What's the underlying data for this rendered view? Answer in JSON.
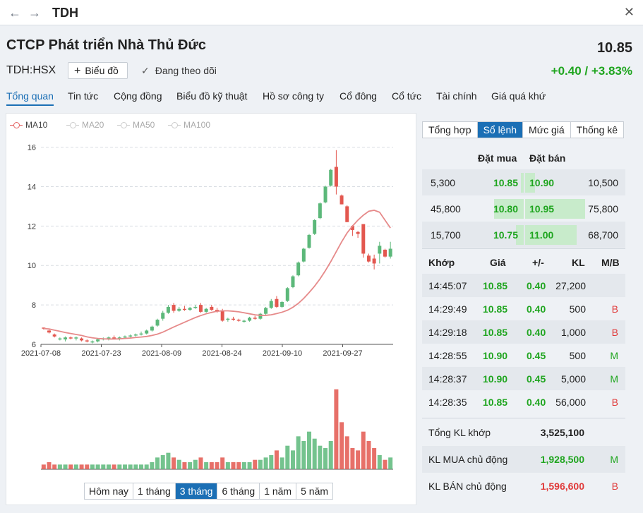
{
  "window": {
    "back_icon": "arrow-left-icon",
    "forward_icon": "arrow-right-icon",
    "title": "TDH",
    "close_icon": "close-icon"
  },
  "stock": {
    "name": "CTCP Phát triển Nhà Thủ Đức",
    "ticker": "TDH:HSX",
    "price": "10.85",
    "change": "+0.40 / +3.83%",
    "chart_button": "Biểu đồ",
    "follow_label": "Đang theo dõi"
  },
  "tabs": [
    "Tổng quan",
    "Tin tức",
    "Cộng đồng",
    "Biểu đồ kỹ thuật",
    "Hồ sơ công ty",
    "Cổ đông",
    "Cổ tức",
    "Tài chính",
    "Giá quá khứ"
  ],
  "active_tab": "Tổng quan",
  "legend": [
    {
      "label": "MA10",
      "on": true
    },
    {
      "label": "MA20",
      "on": false
    },
    {
      "label": "MA50",
      "on": false
    },
    {
      "label": "MA100",
      "on": false
    }
  ],
  "ranges": [
    "Hôm nay",
    "1 tháng",
    "3 tháng",
    "6 tháng",
    "1 năm",
    "5 năm"
  ],
  "active_range": "3 tháng",
  "colors": {
    "up": "#5cb87a",
    "down": "#e3574f",
    "ma10": "#e68a8a",
    "accent": "#1b6fb5",
    "green": "#1fa51f",
    "red": "#e03a3a"
  },
  "chart_data": {
    "type": "candlestick",
    "x_ticks": [
      "2021-07-08",
      "2021-07-23",
      "2021-08-09",
      "2021-08-24",
      "2021-09-10",
      "2021-09-27"
    ],
    "y_ticks": [
      6,
      8,
      10,
      12,
      14,
      16
    ],
    "ylim": [
      6,
      16.7
    ],
    "grid": true,
    "candles": [
      [
        6.85,
        6.85,
        6.75,
        6.8
      ],
      [
        6.7,
        6.75,
        6.55,
        6.6
      ],
      [
        6.5,
        6.55,
        6.35,
        6.4
      ],
      [
        6.25,
        6.35,
        6.2,
        6.3
      ],
      [
        6.25,
        6.4,
        6.15,
        6.35
      ],
      [
        6.35,
        6.4,
        6.25,
        6.3
      ],
      [
        6.3,
        6.4,
        6.2,
        6.35
      ],
      [
        6.3,
        6.35,
        6.15,
        6.2
      ],
      [
        6.2,
        6.25,
        6.1,
        6.15
      ],
      [
        6.15,
        6.2,
        6.05,
        6.15
      ],
      [
        6.15,
        6.3,
        6.1,
        6.25
      ],
      [
        6.25,
        6.35,
        6.2,
        6.3
      ],
      [
        6.3,
        6.4,
        6.2,
        6.35
      ],
      [
        6.35,
        6.45,
        6.25,
        6.3
      ],
      [
        6.3,
        6.4,
        6.2,
        6.35
      ],
      [
        6.35,
        6.45,
        6.3,
        6.4
      ],
      [
        6.4,
        6.5,
        6.35,
        6.45
      ],
      [
        6.45,
        6.55,
        6.4,
        6.5
      ],
      [
        6.5,
        6.65,
        6.45,
        6.55
      ],
      [
        6.55,
        6.75,
        6.5,
        6.7
      ],
      [
        6.7,
        6.95,
        6.65,
        6.9
      ],
      [
        6.95,
        7.3,
        6.9,
        7.25
      ],
      [
        7.3,
        7.7,
        7.2,
        7.6
      ],
      [
        7.6,
        8.0,
        7.55,
        7.9
      ],
      [
        8.0,
        8.1,
        7.6,
        7.7
      ],
      [
        7.7,
        7.9,
        7.65,
        7.8
      ],
      [
        7.8,
        7.95,
        7.7,
        7.75
      ],
      [
        7.75,
        7.9,
        7.7,
        7.85
      ],
      [
        7.85,
        8.0,
        7.8,
        7.9
      ],
      [
        8.0,
        8.1,
        7.6,
        7.65
      ],
      [
        7.65,
        7.85,
        7.6,
        7.8
      ],
      [
        7.9,
        8.0,
        7.7,
        7.75
      ],
      [
        7.75,
        7.85,
        7.6,
        7.7
      ],
      [
        7.7,
        7.8,
        7.15,
        7.2
      ],
      [
        7.25,
        7.35,
        7.15,
        7.3
      ],
      [
        7.3,
        7.4,
        7.2,
        7.25
      ],
      [
        7.25,
        7.3,
        7.15,
        7.2
      ],
      [
        7.15,
        7.25,
        7.1,
        7.2
      ],
      [
        7.2,
        7.4,
        7.15,
        7.35
      ],
      [
        7.35,
        7.45,
        7.25,
        7.3
      ],
      [
        7.3,
        7.6,
        7.25,
        7.55
      ],
      [
        7.55,
        7.9,
        7.5,
        7.85
      ],
      [
        7.85,
        8.3,
        7.8,
        8.2
      ],
      [
        8.3,
        8.45,
        7.85,
        7.9
      ],
      [
        7.9,
        8.2,
        7.85,
        8.15
      ],
      [
        8.2,
        8.9,
        8.15,
        8.85
      ],
      [
        8.9,
        9.5,
        8.85,
        9.45
      ],
      [
        9.5,
        10.2,
        9.45,
        10.15
      ],
      [
        10.2,
        10.9,
        10.15,
        10.85
      ],
      [
        10.9,
        11.6,
        10.85,
        11.55
      ],
      [
        11.6,
        12.35,
        11.55,
        12.3
      ],
      [
        12.4,
        13.2,
        12.35,
        13.15
      ],
      [
        13.2,
        14.05,
        13.15,
        14.0
      ],
      [
        14.05,
        14.9,
        14.0,
        14.85
      ],
      [
        15.0,
        15.85,
        13.6,
        14.0
      ],
      [
        13.55,
        13.6,
        13.1,
        13.1
      ],
      [
        13.0,
        13.05,
        12.2,
        12.2
      ],
      [
        12.0,
        12.05,
        11.5,
        11.8
      ],
      [
        11.7,
        11.75,
        11.4,
        11.6
      ],
      [
        12.1,
        12.1,
        10.4,
        10.6
      ],
      [
        10.5,
        10.6,
        10.15,
        10.2
      ],
      [
        10.35,
        10.55,
        9.8,
        10.1
      ],
      [
        10.6,
        11.2,
        10.1,
        11.0
      ],
      [
        10.8,
        10.85,
        10.4,
        10.45
      ],
      [
        10.45,
        11.2,
        10.35,
        10.85
      ]
    ],
    "ma10": [
      6.8,
      6.78,
      6.72,
      6.66,
      6.6,
      6.55,
      6.5,
      6.45,
      6.38,
      6.33,
      6.3,
      6.28,
      6.27,
      6.27,
      6.28,
      6.3,
      6.32,
      6.35,
      6.37,
      6.4,
      6.45,
      6.52,
      6.62,
      6.75,
      6.88,
      7.0,
      7.12,
      7.24,
      7.36,
      7.46,
      7.55,
      7.62,
      7.68,
      7.7,
      7.7,
      7.68,
      7.65,
      7.6,
      7.55,
      7.5,
      7.47,
      7.47,
      7.5,
      7.56,
      7.63,
      7.73,
      7.88,
      8.08,
      8.33,
      8.63,
      8.95,
      9.32,
      9.74,
      10.2,
      10.7,
      11.2,
      11.65,
      12.0,
      12.3,
      12.55,
      12.75,
      12.8,
      12.7,
      12.3,
      11.9
    ],
    "volume": [
      2,
      3,
      2,
      2,
      2,
      2,
      2,
      2,
      2,
      2,
      2,
      2,
      2,
      2,
      2,
      2,
      2,
      2,
      2,
      2,
      3,
      5,
      6,
      7,
      5,
      4,
      3,
      3,
      4,
      5,
      3,
      3,
      3,
      5,
      3,
      3,
      3,
      3,
      3,
      4,
      4,
      5,
      6,
      8,
      5,
      10,
      8,
      14,
      12,
      16,
      13,
      10,
      9,
      12,
      34,
      20,
      14,
      9,
      8,
      16,
      12,
      9,
      6,
      4,
      5
    ]
  },
  "side": {
    "subtabs": [
      "Tổng hợp",
      "Sổ lệnh",
      "Mức giá",
      "Thống kê"
    ],
    "active_subtab": "Sổ lệnh",
    "orderbook_headers": {
      "buy": "Đặt mua",
      "sell": "Đặt bán"
    },
    "orderbook": [
      {
        "bid_vol": "5,300",
        "bid": "10.85",
        "ask": "10.90",
        "ask_vol": "10,500",
        "bid_frac": 0.03,
        "ask_frac": 0.1
      },
      {
        "bid_vol": "45,800",
        "bid": "10.80",
        "ask": "10.95",
        "ask_vol": "75,800",
        "bid_frac": 0.35,
        "ask_frac": 0.61
      },
      {
        "bid_vol": "15,700",
        "bid": "10.75",
        "ask": "11.00",
        "ask_vol": "68,700",
        "bid_frac": 0.09,
        "ask_frac": 0.52
      }
    ],
    "trade_headers": {
      "time": "Khớp",
      "price": "Giá",
      "change": "+/-",
      "volume": "KL",
      "side": "M/B"
    },
    "trades": [
      {
        "time": "14:45:07",
        "price": "10.85",
        "change": "0.40",
        "volume": "27,200",
        "side": ""
      },
      {
        "time": "14:29:49",
        "price": "10.85",
        "change": "0.40",
        "volume": "500",
        "side": "B"
      },
      {
        "time": "14:29:18",
        "price": "10.85",
        "change": "0.40",
        "volume": "1,000",
        "side": "B"
      },
      {
        "time": "14:28:55",
        "price": "10.90",
        "change": "0.45",
        "volume": "500",
        "side": "M"
      },
      {
        "time": "14:28:37",
        "price": "10.90",
        "change": "0.45",
        "volume": "5,000",
        "side": "M"
      },
      {
        "time": "14:28:35",
        "price": "10.85",
        "change": "0.40",
        "volume": "56,000",
        "side": "B"
      }
    ],
    "summary": [
      {
        "label": "Tổng KL khớp",
        "value": "3,525,100",
        "flag": "",
        "color": "#222"
      },
      {
        "label": "KL MUA chủ động",
        "value": "1,928,500",
        "flag": "M",
        "color": "#1fa51f"
      },
      {
        "label": "KL BÁN chủ động",
        "value": "1,596,600",
        "flag": "B",
        "color": "#e03a3a"
      }
    ]
  }
}
